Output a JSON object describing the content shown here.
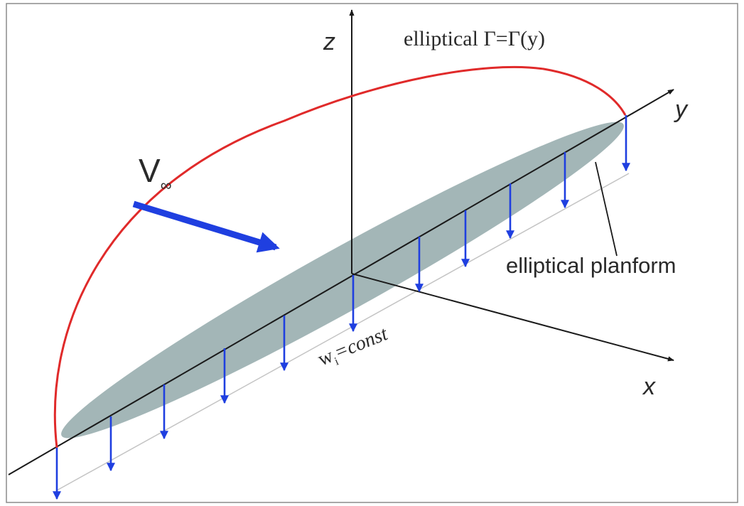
{
  "labels": {
    "z_axis": "z",
    "y_axis": "y",
    "x_axis": "x",
    "circulation_title": "elliptical Γ=Γ(y)",
    "freestream_main": "V",
    "freestream_sub": "∞",
    "downwash_main": "w",
    "downwash_sub": "i",
    "downwash_rest": "=const",
    "planform_label": "elliptical planform"
  },
  "colors": {
    "frame": "#8c8c8c",
    "axis": "#1a1a1a",
    "circulation_curve": "#e02a2a",
    "planform_fill": "#a3b6b7",
    "downwash_arrow": "#1f3fe0",
    "freestream_arrow": "#1f3fe0",
    "guide_line": "#bfbfbf",
    "text": "#2a2a2a"
  },
  "icons": {
    "freestream": "thick-arrow",
    "downwash": "down-arrow"
  }
}
